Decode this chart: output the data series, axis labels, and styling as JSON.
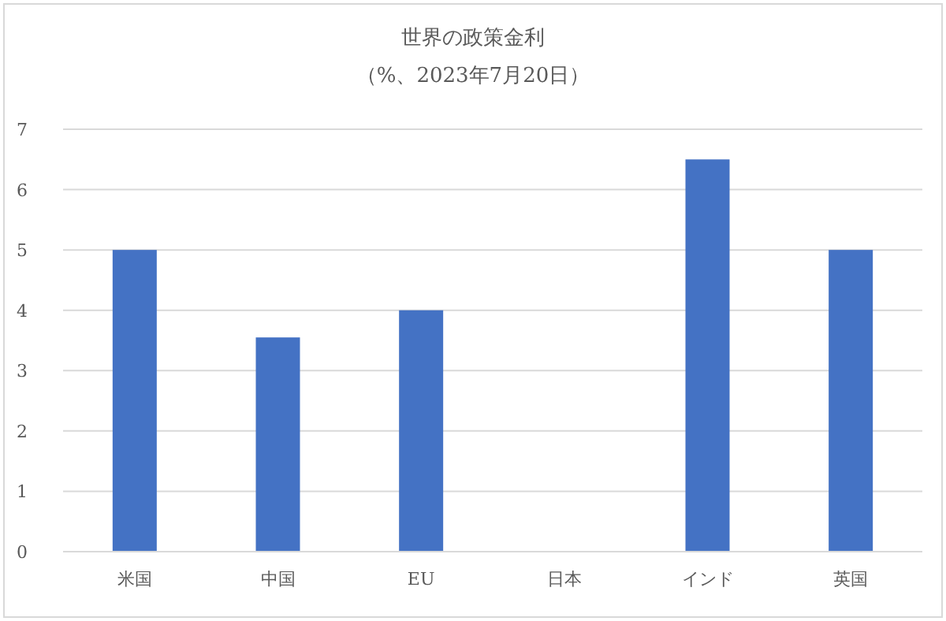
{
  "chart_data": {
    "type": "bar",
    "title": "世界の政策金利",
    "subtitle": "（%、2023年7月20日）",
    "categories": [
      "米国",
      "中国",
      "EU",
      "日本",
      "インド",
      "英国"
    ],
    "values": [
      5,
      3.55,
      4,
      0,
      6.5,
      5
    ],
    "color": "#4472c4",
    "ylim": [
      0,
      7
    ],
    "yticks": [
      0,
      1,
      2,
      3,
      4,
      5,
      6,
      7
    ],
    "grid": "y"
  }
}
